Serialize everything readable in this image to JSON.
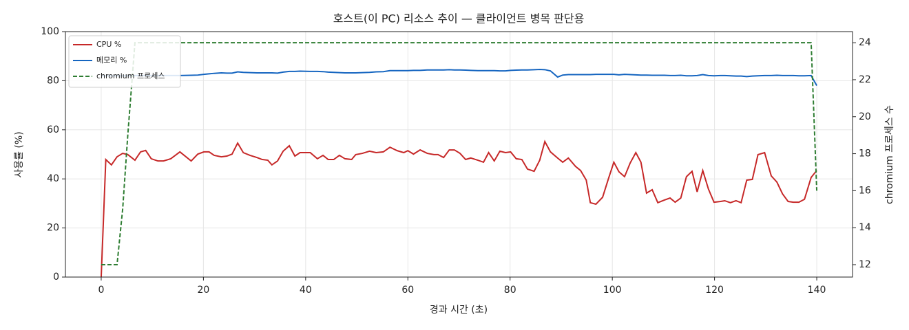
{
  "chart_data": {
    "type": "line",
    "title": "호스트(이 PC) 리소스 추이 — 클라이언트 병목 판단용",
    "xlabel": "경과 시간 (초)",
    "ylabel": "사용률 (%)",
    "y2label": "chromium 프로세스 수",
    "x": [
      0.0,
      0.9,
      2.0,
      3.1,
      4.2,
      5.2,
      6.6,
      7.7,
      8.7,
      9.8,
      11.1,
      12.2,
      13.6,
      15.4,
      17.6,
      18.9,
      20.1,
      21.1,
      22.1,
      23.5,
      24.6,
      25.6,
      26.7,
      27.8,
      29.1,
      30.5,
      31.5,
      32.6,
      33.4,
      34.5,
      35.6,
      36.8,
      37.9,
      38.9,
      40.9,
      42.3,
      43.4,
      44.4,
      45.5,
      46.6,
      47.7,
      49.0,
      49.8,
      51.1,
      52.5,
      53.8,
      55.2,
      56.5,
      57.9,
      59.2,
      60.0,
      61.1,
      62.4,
      63.8,
      65.1,
      65.9,
      67.0,
      68.1,
      69.1,
      70.2,
      71.3,
      72.3,
      73.7,
      74.8,
      75.8,
      76.9,
      78.0,
      79.1,
      80.1,
      81.2,
      82.3,
      83.4,
      84.7,
      85.8,
      86.8,
      87.9,
      89.3,
      90.3,
      91.4,
      92.8,
      93.8,
      94.9,
      95.7,
      96.8,
      98.1,
      99.2,
      100.3,
      101.3,
      102.4,
      103.5,
      104.6,
      105.6,
      106.7,
      107.8,
      108.9,
      110.2,
      111.3,
      112.3,
      113.4,
      114.5,
      115.6,
      116.6,
      117.7,
      118.8,
      119.9,
      121.2,
      122.0,
      123.1,
      124.2,
      125.2,
      126.3,
      127.4,
      128.5,
      129.8,
      131.1,
      132.2,
      133.3,
      134.4,
      135.4,
      136.5,
      137.6,
      138.9,
      140.0
    ],
    "series": [
      {
        "name": "CPU %",
        "color": "#c62828",
        "linestyle": "solid",
        "values": [
          0,
          47.9,
          45.7,
          49.0,
          50.4,
          49.9,
          47.6,
          51.0,
          51.6,
          48.2,
          47.3,
          47.3,
          48.2,
          51.0,
          47.3,
          50.1,
          51.0,
          51.0,
          49.6,
          49.0,
          49.3,
          50.1,
          54.6,
          50.7,
          49.6,
          48.7,
          47.9,
          47.6,
          45.7,
          47.3,
          51.3,
          53.5,
          49.3,
          50.7,
          50.7,
          48.2,
          49.6,
          47.9,
          47.9,
          49.6,
          48.2,
          47.9,
          49.9,
          50.4,
          51.3,
          50.7,
          51.0,
          52.9,
          51.5,
          50.7,
          51.5,
          50.1,
          51.8,
          50.4,
          49.9,
          49.9,
          48.7,
          51.8,
          51.8,
          50.4,
          47.9,
          48.5,
          47.6,
          46.8,
          50.7,
          47.3,
          51.3,
          50.7,
          51.0,
          48.2,
          47.9,
          44.0,
          43.1,
          47.6,
          55.2,
          51.0,
          48.5,
          46.8,
          48.5,
          45.1,
          43.4,
          39.5,
          30.3,
          29.7,
          32.5,
          39.8,
          46.8,
          42.9,
          40.9,
          46.5,
          50.7,
          46.8,
          34.2,
          35.6,
          30.3,
          31.4,
          32.2,
          30.5,
          32.2,
          40.9,
          43.1,
          34.7,
          43.4,
          35.9,
          30.5,
          30.8,
          31.1,
          30.3,
          31.1,
          30.3,
          39.5,
          39.8,
          49.9,
          50.7,
          41.2,
          38.7,
          33.9,
          30.8,
          30.5,
          30.5,
          31.7,
          40.6,
          43.4
        ]
      },
      {
        "name": "메모리 %",
        "color": "#1565c0",
        "linestyle": "solid",
        "values": [
          82,
          82,
          82,
          82,
          82,
          82,
          82.1,
          82.1,
          82.1,
          82.1,
          82.1,
          82.1,
          82.1,
          82.1,
          82.2,
          82.3,
          82.6,
          82.8,
          83,
          83.2,
          83.1,
          83.1,
          83.6,
          83.4,
          83.3,
          83.2,
          83.2,
          83.2,
          83.2,
          83.1,
          83.5,
          83.8,
          83.8,
          83.9,
          83.8,
          83.8,
          83.7,
          83.5,
          83.4,
          83.3,
          83.2,
          83.2,
          83.2,
          83.3,
          83.4,
          83.6,
          83.7,
          84.1,
          84.1,
          84.1,
          84.1,
          84.2,
          84.2,
          84.4,
          84.4,
          84.4,
          84.4,
          84.5,
          84.4,
          84.4,
          84.3,
          84.2,
          84.1,
          84.1,
          84.1,
          84.1,
          84,
          84,
          84.2,
          84.3,
          84.4,
          84.4,
          84.5,
          84.6,
          84.5,
          84,
          81.5,
          82.3,
          82.5,
          82.5,
          82.5,
          82.5,
          82.5,
          82.6,
          82.6,
          82.6,
          82.6,
          82.4,
          82.6,
          82.5,
          82.4,
          82.3,
          82.3,
          82.2,
          82.2,
          82.2,
          82.1,
          82.1,
          82.2,
          82,
          82,
          82.1,
          82.5,
          82.1,
          82,
          82.1,
          82.1,
          82,
          81.9,
          81.9,
          81.7,
          81.9,
          82,
          82.1,
          82.1,
          82.2,
          82.1,
          82.1,
          82.1,
          82,
          82,
          82.1,
          78
        ]
      },
      {
        "name": "chromium 프로세스",
        "color": "#2e7d32",
        "linestyle": "dashed",
        "axis": "y2",
        "values": [
          12,
          12,
          12,
          12,
          15,
          19,
          24,
          24,
          24,
          24,
          24,
          24,
          24,
          24,
          24,
          24,
          24,
          24,
          24,
          24,
          24,
          24,
          24,
          24,
          24,
          24,
          24,
          24,
          24,
          24,
          24,
          24,
          24,
          24,
          24,
          24,
          24,
          24,
          24,
          24,
          24,
          24,
          24,
          24,
          24,
          24,
          24,
          24,
          24,
          24,
          24,
          24,
          24,
          24,
          24,
          24,
          24,
          24,
          24,
          24,
          24,
          24,
          24,
          24,
          24,
          24,
          24,
          24,
          24,
          24,
          24,
          24,
          24,
          24,
          24,
          24,
          24,
          24,
          24,
          24,
          24,
          24,
          24,
          24,
          24,
          24,
          24,
          24,
          24,
          24,
          24,
          24,
          24,
          24,
          24,
          24,
          24,
          24,
          24,
          24,
          24,
          24,
          24,
          24,
          24,
          24,
          24,
          24,
          24,
          24,
          24,
          24,
          24,
          24,
          24,
          24,
          24,
          24,
          24,
          24,
          24,
          24,
          16
        ]
      }
    ],
    "xlim": [
      -7,
      147
    ],
    "xticks": [
      0,
      20,
      40,
      60,
      80,
      100,
      120,
      140
    ],
    "ylim": [
      0,
      100
    ],
    "yticks": [
      0,
      20,
      40,
      60,
      80,
      100
    ],
    "y2lim": [
      11.33,
      24.6
    ],
    "y2ticks": [
      12,
      14,
      16,
      18,
      20,
      22,
      24
    ],
    "grid": true,
    "legend": "upper left"
  }
}
